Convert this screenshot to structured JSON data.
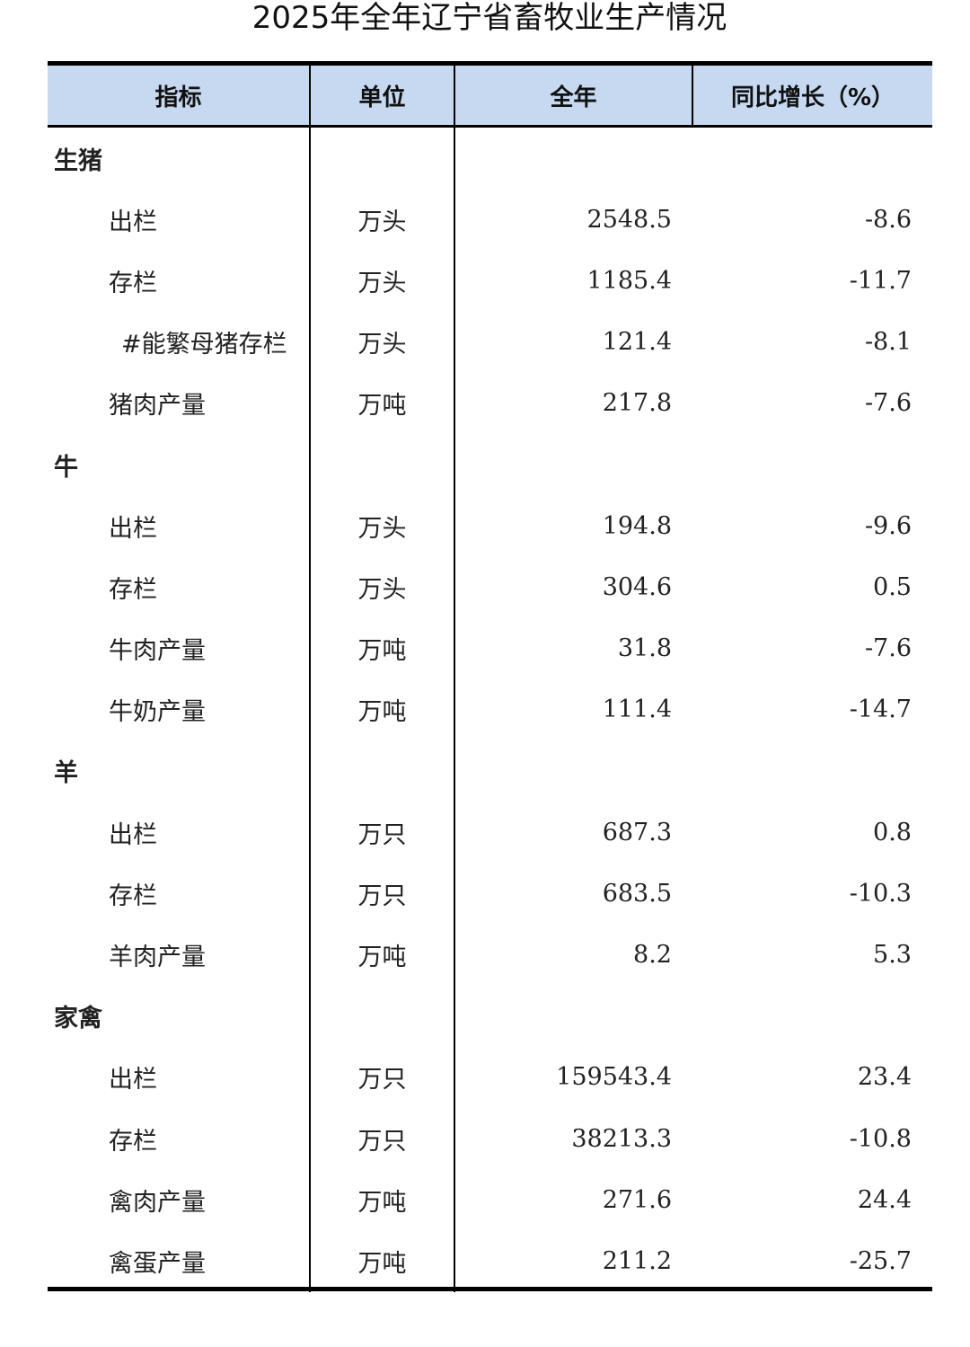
{
  "title": "2025年全年辽宁省畜牧业生产情况",
  "headers": [
    "指标",
    "单位",
    "全年",
    "同比增长（%）"
  ],
  "rows": [
    {
      "type": "cat",
      "name": "生猪",
      "unit": "",
      "value": "",
      "growth": ""
    },
    {
      "type": "item",
      "name": "出栏",
      "unit": "万头",
      "value": "2548.5",
      "growth": "-8.6"
    },
    {
      "type": "item",
      "name": "存栏",
      "unit": "万头",
      "value": "1185.4",
      "growth": "-11.7"
    },
    {
      "type": "sub",
      "name": "#能繁母猪存栏",
      "unit": "万头",
      "value": "121.4",
      "growth": "-8.1"
    },
    {
      "type": "item",
      "name": "猪肉产量",
      "unit": "万吨",
      "value": "217.8",
      "growth": "-7.6"
    },
    {
      "type": "cat",
      "name": "牛",
      "unit": "",
      "value": "",
      "growth": ""
    },
    {
      "type": "item",
      "name": "出栏",
      "unit": "万头",
      "value": "194.8",
      "growth": "-9.6"
    },
    {
      "type": "item",
      "name": "存栏",
      "unit": "万头",
      "value": "304.6",
      "growth": "0.5"
    },
    {
      "type": "item",
      "name": "牛肉产量",
      "unit": "万吨",
      "value": "31.8",
      "growth": "-7.6"
    },
    {
      "type": "item",
      "name": "牛奶产量",
      "unit": "万吨",
      "value": "111.4",
      "growth": "-14.7"
    },
    {
      "type": "cat",
      "name": "羊",
      "unit": "",
      "value": "",
      "growth": ""
    },
    {
      "type": "item",
      "name": "出栏",
      "unit": "万只",
      "value": "687.3",
      "growth": "0.8"
    },
    {
      "type": "item",
      "name": "存栏",
      "unit": "万只",
      "value": "683.5",
      "growth": "-10.3"
    },
    {
      "type": "item",
      "name": "羊肉产量",
      "unit": "万吨",
      "value": "8.2",
      "growth": "5.3"
    },
    {
      "type": "cat",
      "name": "家禽",
      "unit": "",
      "value": "",
      "growth": ""
    },
    {
      "type": "item",
      "name": "出栏",
      "unit": "万只",
      "value": "159543.4",
      "growth": "23.4"
    },
    {
      "type": "item",
      "name": "存栏",
      "unit": "万只",
      "value": "38213.3",
      "growth": "-10.8"
    },
    {
      "type": "item",
      "name": "禽肉产量",
      "unit": "万吨",
      "value": "271.6",
      "growth": "24.4"
    },
    {
      "type": "item",
      "name": "禽蛋产量",
      "unit": "万吨",
      "value": "211.2",
      "growth": "-25.7"
    }
  ],
  "colors": {
    "header_bg": "#c6d9f1",
    "rule": "#000000"
  }
}
